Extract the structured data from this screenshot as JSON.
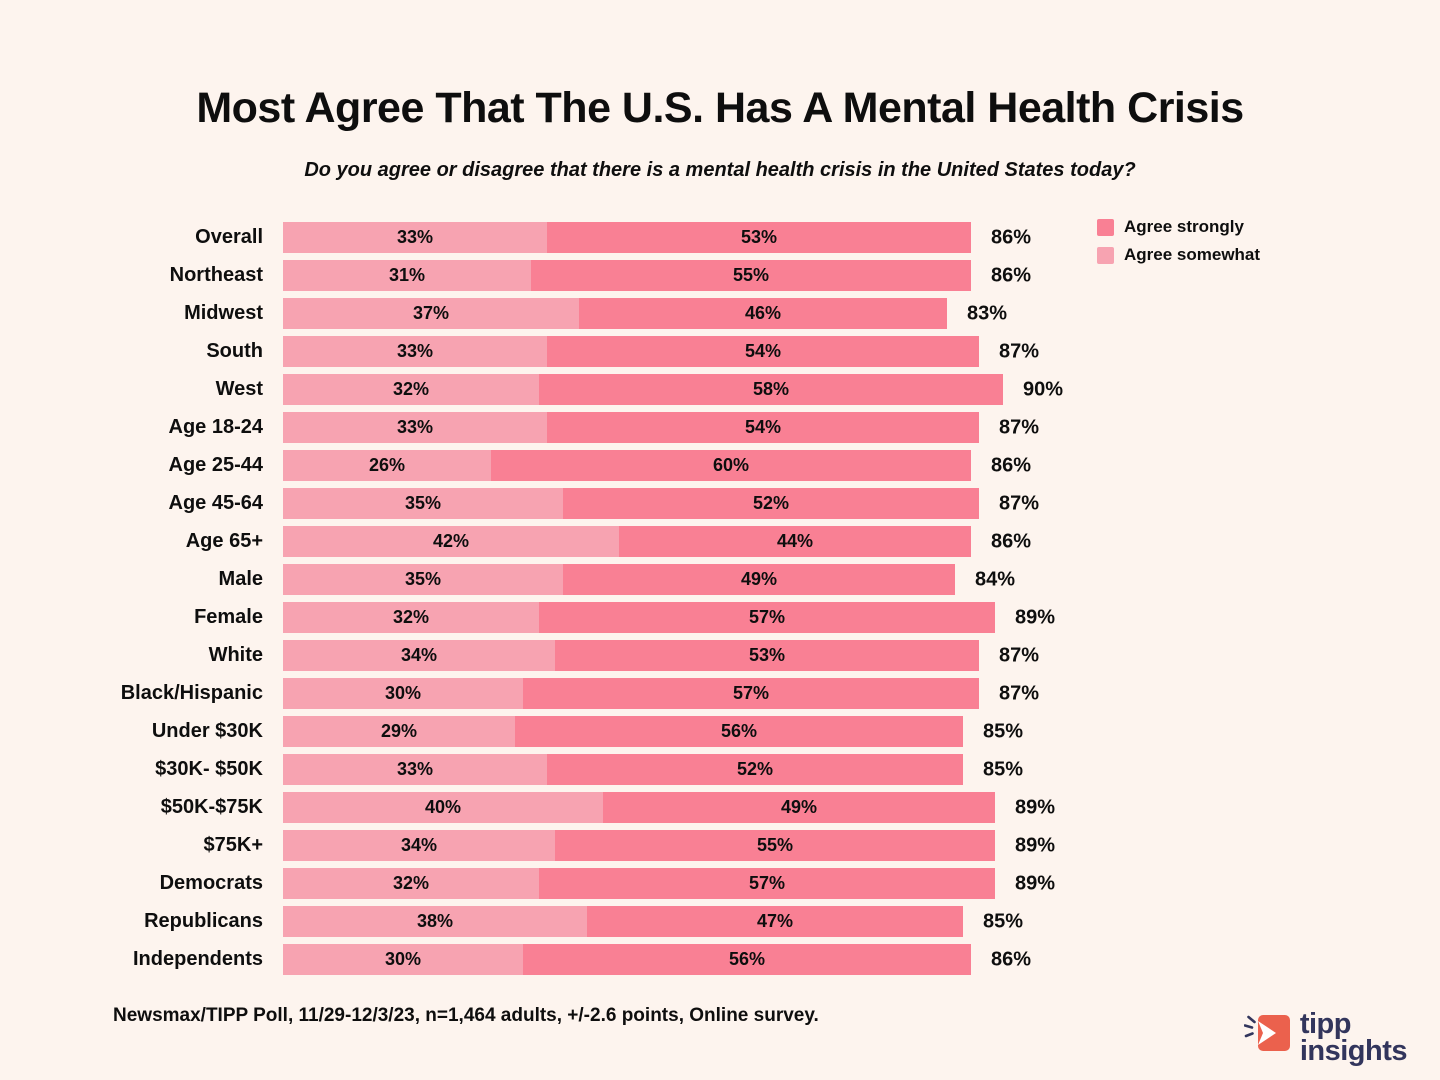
{
  "title": "Most Agree That The U.S. Has A Mental Health Crisis",
  "subtitle": "Do you agree or disagree that there is a mental health crisis in the United States today?",
  "footer": "Newsmax/TIPP Poll, 11/29-12/3/23, n=1,464 adults, +/-2.6 points, Online survey.",
  "logo": {
    "line1": "tipp",
    "line2": "insights"
  },
  "colors": {
    "bg": "#FDF4EE",
    "ink": "#0e0e0e",
    "somewhat": "#F7A3B1",
    "strongly": "#F98094",
    "brand_navy": "#32355C",
    "brand_coral": "#EB614D"
  },
  "legend": {
    "position": "upper right",
    "items": [
      {
        "label": "Agree strongly",
        "color": "#F98094"
      },
      {
        "label": "Agree somewhat",
        "color": "#F7A3B1"
      }
    ]
  },
  "chart_data": {
    "type": "bar",
    "orientation": "horizontal",
    "stacked": true,
    "grid": false,
    "xlim": [
      0,
      100
    ],
    "value_suffix": "%",
    "categories": [
      "Overall",
      "Northeast",
      "Midwest",
      "South",
      "West",
      "Age 18-24",
      "Age 25-44",
      "Age 45-64",
      "Age 65+",
      "Male",
      "Female",
      "White",
      "Black/Hispanic",
      "Under $30K",
      "$30K- $50K",
      "$50K-$75K",
      "$75K+",
      "Democrats",
      "Republicans",
      "Independents"
    ],
    "series": [
      {
        "name": "Agree somewhat",
        "color": "#F7A3B1",
        "values": [
          33,
          31,
          37,
          33,
          32,
          33,
          26,
          35,
          42,
          35,
          32,
          34,
          30,
          29,
          33,
          40,
          34,
          32,
          38,
          30
        ]
      },
      {
        "name": "Agree strongly",
        "color": "#F98094",
        "values": [
          53,
          55,
          46,
          54,
          58,
          54,
          60,
          52,
          44,
          49,
          57,
          53,
          57,
          56,
          52,
          49,
          55,
          57,
          47,
          56
        ]
      }
    ],
    "totals": [
      86,
      86,
      83,
      87,
      90,
      87,
      86,
      87,
      86,
      84,
      89,
      87,
      87,
      85,
      85,
      89,
      89,
      89,
      85,
      86
    ]
  }
}
